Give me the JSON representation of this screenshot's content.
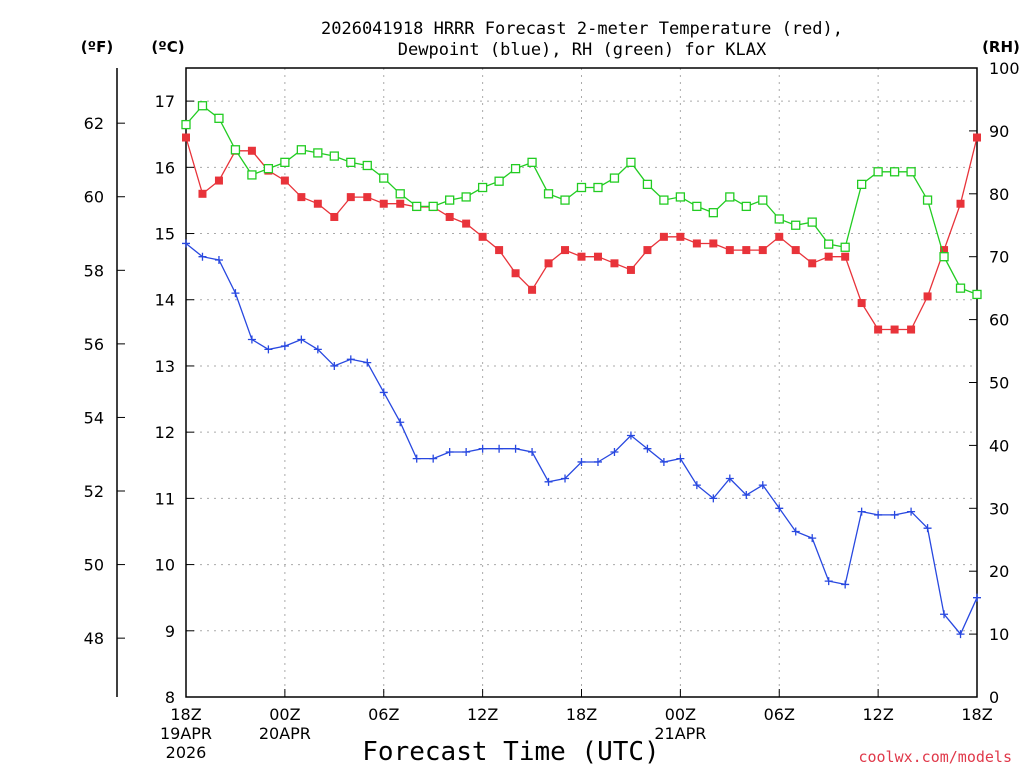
{
  "chart_data": {
    "type": "line",
    "title_line1": "2026041918 HRRR Forecast 2-meter Temperature (red),",
    "title_line2": "Dewpoint (blue), RH (green) for KLAX",
    "xlabel": "Forecast Time (UTC)",
    "credit": "coolwx.com/models",
    "unit_left_f": "(ºF)",
    "unit_left_c": "(ºC)",
    "unit_right": "(RH)",
    "x_range": [
      0,
      48
    ],
    "ylim_c": [
      8,
      17.5
    ],
    "ylim_rh": [
      0,
      100
    ],
    "x_ticks": [
      {
        "h": 0,
        "l1": "18Z",
        "l2": "19APR",
        "l3": "2026"
      },
      {
        "h": 6,
        "l1": "00Z",
        "l2": "20APR",
        "l3": ""
      },
      {
        "h": 12,
        "l1": "06Z",
        "l2": "",
        "l3": ""
      },
      {
        "h": 18,
        "l1": "12Z",
        "l2": "",
        "l3": ""
      },
      {
        "h": 24,
        "l1": "18Z",
        "l2": "",
        "l3": ""
      },
      {
        "h": 30,
        "l1": "00Z",
        "l2": "21APR",
        "l3": ""
      },
      {
        "h": 36,
        "l1": "06Z",
        "l2": "",
        "l3": ""
      },
      {
        "h": 42,
        "l1": "12Z",
        "l2": "",
        "l3": ""
      },
      {
        "h": 48,
        "l1": "18Z",
        "l2": "",
        "l3": ""
      }
    ],
    "c_ticks": [
      "8",
      "9",
      "10",
      "11",
      "12",
      "13",
      "14",
      "15",
      "16",
      "17"
    ],
    "f_ticks": [
      "48",
      "50",
      "52",
      "54",
      "56",
      "58",
      "60",
      "62"
    ],
    "rh_ticks": [
      "0",
      "10",
      "20",
      "30",
      "40",
      "50",
      "60",
      "70",
      "80",
      "90",
      "100"
    ],
    "series": [
      {
        "name": "Temperature",
        "units": "C",
        "color": "#e8333a",
        "marker": "filled-square",
        "values": [
          16.45,
          15.6,
          15.8,
          16.25,
          16.25,
          15.95,
          15.8,
          15.55,
          15.45,
          15.25,
          15.55,
          15.55,
          15.45,
          15.45,
          15.4,
          15.4,
          15.25,
          15.15,
          14.95,
          14.75,
          14.4,
          14.15,
          14.55,
          14.75,
          14.65,
          14.65,
          14.55,
          14.45,
          14.75,
          14.95,
          14.95,
          14.85,
          14.85,
          14.75,
          14.75,
          14.75,
          14.95,
          14.75,
          14.55,
          14.65,
          14.65,
          13.95,
          13.55,
          13.55,
          13.55,
          14.05,
          14.75,
          15.45,
          16.45
        ]
      },
      {
        "name": "Dewpoint",
        "units": "C",
        "color": "#2848e0",
        "marker": "plus",
        "values": [
          14.85,
          14.65,
          14.6,
          14.1,
          13.4,
          13.25,
          13.3,
          13.4,
          13.25,
          13.0,
          13.1,
          13.05,
          12.6,
          12.15,
          11.6,
          11.6,
          11.7,
          11.7,
          11.75,
          11.75,
          11.75,
          11.7,
          11.25,
          11.3,
          11.55,
          11.55,
          11.7,
          11.95,
          11.75,
          11.55,
          11.6,
          11.2,
          11.0,
          11.3,
          11.05,
          11.2,
          10.85,
          10.5,
          10.4,
          9.75,
          9.7,
          10.8,
          10.75,
          10.75,
          10.8,
          10.55,
          9.25,
          8.95,
          9.5
        ]
      },
      {
        "name": "RH",
        "units": "%",
        "color": "#22cc22",
        "marker": "open-square",
        "values": [
          91,
          94,
          92,
          87,
          83,
          84,
          85,
          87,
          86.5,
          86,
          85,
          84.5,
          82.5,
          80,
          78,
          78,
          79,
          79.5,
          81,
          82,
          84,
          85,
          80,
          79,
          81,
          81,
          82.5,
          85,
          81.5,
          79,
          79.5,
          78,
          77,
          79.5,
          78,
          79,
          76,
          75,
          75.5,
          72,
          71.5,
          81.5,
          83.5,
          83.5,
          83.5,
          79,
          70,
          65,
          64
        ]
      }
    ]
  }
}
